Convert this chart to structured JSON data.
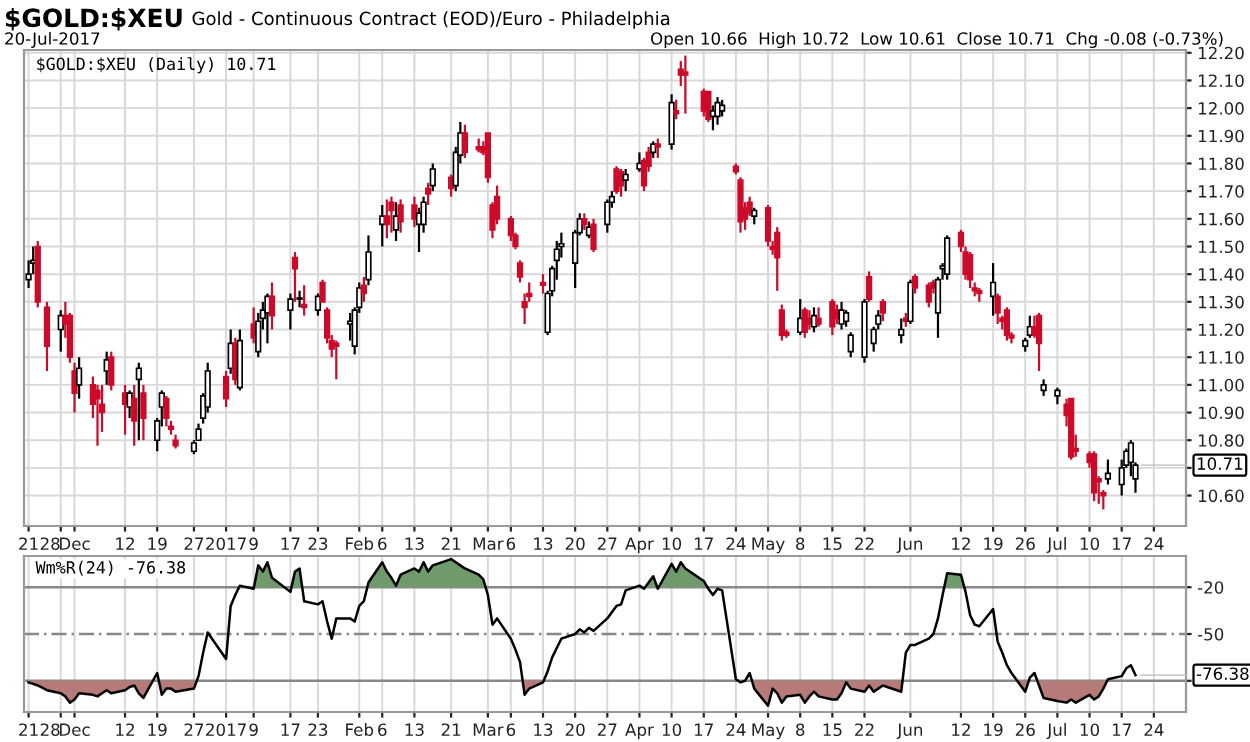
{
  "chart_data": [
    {
      "type": "candlestick",
      "title": "$GOLD:$XEU",
      "subtitle": "Gold - Continuous Contract (EOD)/Euro - Philadelphia",
      "annotations": [
        "20-Jul-2017",
        "Open 10.66  High 10.72  Low 10.61  Close 10.71  Chg -0.08 (-0.73%)",
        "$GOLD:$XEU (Daily) 10.71",
        {
          "text": "10.71",
          "x": "2017-07-20",
          "y": 10.71
        }
      ],
      "x": [
        "2016-11-21",
        "2016-11-22",
        "2016-11-23",
        "2016-11-25",
        "2016-11-28",
        "2016-11-29",
        "2016-11-30",
        "2016-12-01",
        "2016-12-02",
        "2016-12-05",
        "2016-12-06",
        "2016-12-07",
        "2016-12-08",
        "2016-12-09",
        "2016-12-12",
        "2016-12-13",
        "2016-12-14",
        "2016-12-15",
        "2016-12-16",
        "2016-12-19",
        "2016-12-20",
        "2016-12-21",
        "2016-12-22",
        "2016-12-23",
        "2016-12-27",
        "2016-12-28",
        "2016-12-29",
        "2016-12-30",
        "2017-01-03",
        "2017-01-04",
        "2017-01-05",
        "2017-01-06",
        "2017-01-09",
        "2017-01-10",
        "2017-01-11",
        "2017-01-12",
        "2017-01-13",
        "2017-01-17",
        "2017-01-18",
        "2017-01-19",
        "2017-01-20",
        "2017-01-23",
        "2017-01-24",
        "2017-01-25",
        "2017-01-26",
        "2017-01-27",
        "2017-01-30",
        "2017-01-31",
        "2017-02-01",
        "2017-02-02",
        "2017-02-03",
        "2017-02-06",
        "2017-02-07",
        "2017-02-08",
        "2017-02-09",
        "2017-02-10",
        "2017-02-13",
        "2017-02-14",
        "2017-02-15",
        "2017-02-16",
        "2017-02-17",
        "2017-02-21",
        "2017-02-22",
        "2017-02-23",
        "2017-02-24",
        "2017-02-27",
        "2017-02-28",
        "2017-03-01",
        "2017-03-02",
        "2017-03-03",
        "2017-03-06",
        "2017-03-07",
        "2017-03-08",
        "2017-03-09",
        "2017-03-10",
        "2017-03-13",
        "2017-03-14",
        "2017-03-15",
        "2017-03-16",
        "2017-03-17",
        "2017-03-20",
        "2017-03-21",
        "2017-03-22",
        "2017-03-23",
        "2017-03-24",
        "2017-03-27",
        "2017-03-28",
        "2017-03-29",
        "2017-03-30",
        "2017-03-31",
        "2017-04-03",
        "2017-04-04",
        "2017-04-05",
        "2017-04-06",
        "2017-04-07",
        "2017-04-10",
        "2017-04-11",
        "2017-04-12",
        "2017-04-13",
        "2017-04-17",
        "2017-04-18",
        "2017-04-19",
        "2017-04-20",
        "2017-04-21",
        "2017-04-24",
        "2017-04-25",
        "2017-04-26",
        "2017-04-27",
        "2017-04-28",
        "2017-05-01",
        "2017-05-02",
        "2017-05-03",
        "2017-05-04",
        "2017-05-05",
        "2017-05-08",
        "2017-05-09",
        "2017-05-10",
        "2017-05-11",
        "2017-05-12",
        "2017-05-15",
        "2017-05-16",
        "2017-05-17",
        "2017-05-18",
        "2017-05-19",
        "2017-05-22",
        "2017-05-23",
        "2017-05-24",
        "2017-05-25",
        "2017-05-26",
        "2017-05-30",
        "2017-05-31",
        "2017-06-01",
        "2017-06-02",
        "2017-06-05",
        "2017-06-06",
        "2017-06-07",
        "2017-06-08",
        "2017-06-09",
        "2017-06-12",
        "2017-06-13",
        "2017-06-14",
        "2017-06-15",
        "2017-06-16",
        "2017-06-19",
        "2017-06-20",
        "2017-06-21",
        "2017-06-22",
        "2017-06-23",
        "2017-06-26",
        "2017-06-27",
        "2017-06-28",
        "2017-06-29",
        "2017-06-30",
        "2017-07-03",
        "2017-07-05",
        "2017-07-06",
        "2017-07-07",
        "2017-07-10",
        "2017-07-11",
        "2017-07-12",
        "2017-07-13",
        "2017-07-14",
        "2017-07-17",
        "2017-07-18",
        "2017-07-19",
        "2017-07-20"
      ],
      "ohlc": [
        [
          11.38,
          11.45,
          11.35,
          11.4
        ],
        [
          11.44,
          11.5,
          11.4,
          11.45
        ],
        [
          11.5,
          11.52,
          11.28,
          11.3
        ],
        [
          11.28,
          11.3,
          11.05,
          11.14
        ],
        [
          11.2,
          11.27,
          11.12,
          11.25
        ],
        [
          11.25,
          11.3,
          11.17,
          11.22
        ],
        [
          11.25,
          11.26,
          11.08,
          11.1
        ],
        [
          11.05,
          11.08,
          10.9,
          10.97
        ],
        [
          11.0,
          11.1,
          10.95,
          11.06
        ],
        [
          11.0,
          11.03,
          10.88,
          10.93
        ],
        [
          10.98,
          11.0,
          10.78,
          10.95
        ],
        [
          10.93,
          11.0,
          10.83,
          10.9
        ],
        [
          11.05,
          11.12,
          11.0,
          11.09
        ],
        [
          11.1,
          11.12,
          10.98,
          11.0
        ],
        [
          10.97,
          11.0,
          10.82,
          10.93
        ],
        [
          10.92,
          10.98,
          10.88,
          10.97
        ],
        [
          10.95,
          11.0,
          10.78,
          10.87
        ],
        [
          11.02,
          11.08,
          10.8,
          11.06
        ],
        [
          10.97,
          11.0,
          10.8,
          10.88
        ],
        [
          10.8,
          10.88,
          10.76,
          10.87
        ],
        [
          10.92,
          10.98,
          10.85,
          10.97
        ],
        [
          10.95,
          10.96,
          10.85,
          10.88
        ],
        [
          10.85,
          10.87,
          10.82,
          10.84
        ],
        [
          10.8,
          10.82,
          10.77,
          10.78
        ],
        [
          10.76,
          10.8,
          10.75,
          10.79
        ],
        [
          10.8,
          10.86,
          10.8,
          10.84
        ],
        [
          10.88,
          10.97,
          10.86,
          10.96
        ],
        [
          10.92,
          11.08,
          10.9,
          11.05
        ],
        [
          11.03,
          11.05,
          10.92,
          10.95
        ],
        [
          11.06,
          11.2,
          11.04,
          11.15
        ],
        [
          11.15,
          11.17,
          11.0,
          11.02
        ],
        [
          10.99,
          11.2,
          10.98,
          11.16
        ],
        [
          11.22,
          11.28,
          11.15,
          11.17
        ],
        [
          11.12,
          11.26,
          11.1,
          11.23
        ],
        [
          11.24,
          11.3,
          11.2,
          11.27
        ],
        [
          11.26,
          11.33,
          11.15,
          11.32
        ],
        [
          11.32,
          11.37,
          11.2,
          11.25
        ],
        [
          11.27,
          11.33,
          11.2,
          11.31
        ],
        [
          11.46,
          11.48,
          11.3,
          11.42
        ],
        [
          11.31,
          11.34,
          11.28,
          11.31
        ],
        [
          11.29,
          11.36,
          11.25,
          11.28
        ],
        [
          11.27,
          11.33,
          11.25,
          11.32
        ],
        [
          11.37,
          11.38,
          11.3,
          11.3
        ],
        [
          11.27,
          11.28,
          11.15,
          11.17
        ],
        [
          11.16,
          11.18,
          11.1,
          11.13
        ],
        [
          11.15,
          11.16,
          11.02,
          11.14
        ],
        [
          11.22,
          11.26,
          11.16,
          11.23
        ],
        [
          11.14,
          11.28,
          11.11,
          11.27
        ],
        [
          11.28,
          11.37,
          11.26,
          11.35
        ],
        [
          11.36,
          11.39,
          11.3,
          11.33
        ],
        [
          11.38,
          11.54,
          11.36,
          11.48
        ],
        [
          11.58,
          11.65,
          11.5,
          11.61
        ],
        [
          11.61,
          11.67,
          11.53,
          11.58
        ],
        [
          11.66,
          11.68,
          11.55,
          11.63
        ],
        [
          11.56,
          11.66,
          11.52,
          11.61
        ],
        [
          11.65,
          11.67,
          11.55,
          11.59
        ],
        [
          11.65,
          11.68,
          11.57,
          11.6
        ],
        [
          11.58,
          11.64,
          11.48,
          11.62
        ],
        [
          11.58,
          11.68,
          11.55,
          11.66
        ],
        [
          11.71,
          11.73,
          11.65,
          11.69
        ],
        [
          11.72,
          11.8,
          11.7,
          11.78
        ],
        [
          11.75,
          11.76,
          11.68,
          11.71
        ],
        [
          11.72,
          11.86,
          11.7,
          11.84
        ],
        [
          11.83,
          11.95,
          11.8,
          11.91
        ],
        [
          11.91,
          11.94,
          11.82,
          11.84
        ],
        [
          11.86,
          11.89,
          11.84,
          11.85
        ],
        [
          11.86,
          11.88,
          11.83,
          11.84
        ],
        [
          11.91,
          11.91,
          11.73,
          11.75
        ],
        [
          11.65,
          11.66,
          11.53,
          11.56
        ],
        [
          11.68,
          11.72,
          11.58,
          11.6
        ],
        [
          11.6,
          11.61,
          11.52,
          11.54
        ],
        [
          11.54,
          11.55,
          11.49,
          11.5
        ],
        [
          11.44,
          11.45,
          11.37,
          11.39
        ],
        [
          11.3,
          11.33,
          11.22,
          11.28
        ],
        [
          11.33,
          11.37,
          11.3,
          11.32
        ],
        [
          11.37,
          11.4,
          11.33,
          11.36
        ],
        [
          11.19,
          11.34,
          11.18,
          11.33
        ],
        [
          11.34,
          11.43,
          11.32,
          11.42
        ],
        [
          11.45,
          11.52,
          11.38,
          11.49
        ],
        [
          11.5,
          11.55,
          11.46,
          11.51
        ],
        [
          11.44,
          11.56,
          11.35,
          11.55
        ],
        [
          11.55,
          11.62,
          11.54,
          11.6
        ],
        [
          11.6,
          11.62,
          11.56,
          11.58
        ],
        [
          11.54,
          11.59,
          11.53,
          11.57
        ],
        [
          11.58,
          11.6,
          11.48,
          11.49
        ],
        [
          11.58,
          11.67,
          11.55,
          11.66
        ],
        [
          11.66,
          11.7,
          11.64,
          11.68
        ],
        [
          11.78,
          11.79,
          11.69,
          11.7
        ],
        [
          11.77,
          11.78,
          11.68,
          11.72
        ],
        [
          11.74,
          11.78,
          11.7,
          11.76
        ],
        [
          11.78,
          11.84,
          11.77,
          11.8
        ],
        [
          11.81,
          11.82,
          11.7,
          11.72
        ],
        [
          11.84,
          11.86,
          11.77,
          11.79
        ],
        [
          11.84,
          11.88,
          11.82,
          11.87
        ],
        [
          11.87,
          11.89,
          11.82,
          11.86
        ],
        [
          11.87,
          12.05,
          11.85,
          12.02
        ],
        [
          11.99,
          12.03,
          11.96,
          11.98
        ],
        [
          12.14,
          12.17,
          12.08,
          12.12
        ],
        [
          12.13,
          12.19,
          11.98,
          12.12
        ],
        [
          12.06,
          12.07,
          11.97,
          11.99
        ],
        [
          12.06,
          12.06,
          11.95,
          11.96
        ],
        [
          11.97,
          12.01,
          11.92,
          11.99
        ],
        [
          11.97,
          12.04,
          11.94,
          12.02
        ],
        [
          11.99,
          12.03,
          11.97,
          12.01
        ],
        [
          11.79,
          11.8,
          11.76,
          11.77
        ],
        [
          11.74,
          11.75,
          11.55,
          11.59
        ],
        [
          11.64,
          11.66,
          11.56,
          11.6
        ],
        [
          11.66,
          11.68,
          11.61,
          11.62
        ],
        [
          11.61,
          11.64,
          11.58,
          11.63
        ],
        [
          11.64,
          11.65,
          11.5,
          11.52
        ],
        [
          11.5,
          11.52,
          11.47,
          11.49
        ],
        [
          11.55,
          11.57,
          11.34,
          11.46
        ],
        [
          11.27,
          11.29,
          11.16,
          11.18
        ],
        [
          11.19,
          11.2,
          11.17,
          11.18
        ],
        [
          11.19,
          11.31,
          11.18,
          11.24
        ],
        [
          11.27,
          11.28,
          11.17,
          11.19
        ],
        [
          11.24,
          11.27,
          11.2,
          11.22
        ],
        [
          11.21,
          11.28,
          11.19,
          11.25
        ],
        [
          11.24,
          11.28,
          11.21,
          11.22
        ],
        [
          11.3,
          11.31,
          11.18,
          11.21
        ],
        [
          11.27,
          11.29,
          11.22,
          11.24
        ],
        [
          11.22,
          11.3,
          11.2,
          11.27
        ],
        [
          11.23,
          11.27,
          11.21,
          11.26
        ],
        [
          11.12,
          11.19,
          11.1,
          11.18
        ],
        [
          11.1,
          11.31,
          11.08,
          11.3
        ],
        [
          11.39,
          11.41,
          11.3,
          11.31
        ],
        [
          11.15,
          11.21,
          11.12,
          11.2
        ],
        [
          11.22,
          11.27,
          11.2,
          11.25
        ],
        [
          11.3,
          11.31,
          11.23,
          11.26
        ],
        [
          11.18,
          11.24,
          11.15,
          11.2
        ],
        [
          11.24,
          11.26,
          11.21,
          11.23
        ],
        [
          11.23,
          11.38,
          11.22,
          11.37
        ],
        [
          11.39,
          11.4,
          11.33,
          11.35
        ],
        [
          11.36,
          11.37,
          11.28,
          11.3
        ],
        [
          11.37,
          11.38,
          11.33,
          11.35
        ],
        [
          11.26,
          11.39,
          11.17,
          11.38
        ],
        [
          11.42,
          11.44,
          11.38,
          11.43
        ],
        [
          11.4,
          11.54,
          11.38,
          11.53
        ],
        [
          11.55,
          11.56,
          11.48,
          11.5
        ],
        [
          11.48,
          11.5,
          11.38,
          11.4
        ],
        [
          11.47,
          11.48,
          11.35,
          11.38
        ],
        [
          11.35,
          11.37,
          11.32,
          11.34
        ],
        [
          11.34,
          11.35,
          11.3,
          11.33
        ],
        [
          11.32,
          11.44,
          11.25,
          11.37
        ],
        [
          11.32,
          11.33,
          11.22,
          11.26
        ],
        [
          11.24,
          11.25,
          11.2,
          11.23
        ],
        [
          11.27,
          11.28,
          11.16,
          11.18
        ],
        [
          11.18,
          11.19,
          11.15,
          11.17
        ],
        [
          11.14,
          11.17,
          11.12,
          11.16
        ],
        [
          11.18,
          11.25,
          11.17,
          11.21
        ],
        [
          11.21,
          11.25,
          11.17,
          11.18
        ],
        [
          11.25,
          11.26,
          11.05,
          11.15
        ],
        [
          10.98,
          11.02,
          10.96,
          11.0
        ],
        [
          10.96,
          10.99,
          10.93,
          10.98
        ],
        [
          10.93,
          10.95,
          10.85,
          10.89
        ],
        [
          10.95,
          10.95,
          10.73,
          10.74
        ],
        [
          10.77,
          10.82,
          10.74,
          10.76
        ],
        [
          10.75,
          10.76,
          10.7,
          10.72
        ],
        [
          10.75,
          10.76,
          10.58,
          10.61
        ],
        [
          10.66,
          10.67,
          10.57,
          10.65
        ],
        [
          10.61,
          10.62,
          10.55,
          10.6
        ],
        [
          10.66,
          10.73,
          10.64,
          10.68
        ],
        [
          10.64,
          10.73,
          10.6,
          10.7
        ],
        [
          10.71,
          10.77,
          10.7,
          10.76
        ],
        [
          10.72,
          10.8,
          10.67,
          10.79
        ],
        [
          10.66,
          10.72,
          10.61,
          10.71
        ]
      ],
      "xlim": [
        "2016-11-20",
        "2017-07-31"
      ],
      "xticks": [
        {
          "value": "2016-11-21",
          "label": "21"
        },
        {
          "value": "2016-11-28",
          "label": "28"
        },
        {
          "value": "2016-12-01",
          "label": "Dec"
        },
        {
          "value": "2016-12-12",
          "label": "12"
        },
        {
          "value": "2016-12-19",
          "label": "19"
        },
        {
          "value": "2016-12-27",
          "label": "27"
        },
        {
          "value": "2017-01-03",
          "label": "2017"
        },
        {
          "value": "2017-01-09",
          "label": "9"
        },
        {
          "value": "2017-01-17",
          "label": "17"
        },
        {
          "value": "2017-01-23",
          "label": "23"
        },
        {
          "value": "2017-02-01",
          "label": "Feb"
        },
        {
          "value": "2017-02-06",
          "label": "6"
        },
        {
          "value": "2017-02-13",
          "label": "13"
        },
        {
          "value": "2017-02-21",
          "label": "21"
        },
        {
          "value": "2017-03-01",
          "label": "Mar"
        },
        {
          "value": "2017-03-06",
          "label": "6"
        },
        {
          "value": "2017-03-13",
          "label": "13"
        },
        {
          "value": "2017-03-20",
          "label": "20"
        },
        {
          "value": "2017-03-27",
          "label": "27"
        },
        {
          "value": "2017-04-03",
          "label": "Apr"
        },
        {
          "value": "2017-04-10",
          "label": "10"
        },
        {
          "value": "2017-04-17",
          "label": "17"
        },
        {
          "value": "2017-04-24",
          "label": "24"
        },
        {
          "value": "2017-05-01",
          "label": "May"
        },
        {
          "value": "2017-05-08",
          "label": "8"
        },
        {
          "value": "2017-05-15",
          "label": "15"
        },
        {
          "value": "2017-05-22",
          "label": "22"
        },
        {
          "value": "2017-06-01",
          "label": "Jun"
        },
        {
          "value": "2017-06-12",
          "label": "12"
        },
        {
          "value": "2017-06-19",
          "label": "19"
        },
        {
          "value": "2017-06-26",
          "label": "26"
        },
        {
          "value": "2017-07-03",
          "label": "Jul"
        },
        {
          "value": "2017-07-10",
          "label": "10"
        },
        {
          "value": "2017-07-17",
          "label": "17"
        },
        {
          "value": "2017-07-24",
          "label": "24"
        }
      ],
      "ylim": [
        10.49,
        12.21
      ],
      "yticks": [
        {
          "value": 10.6,
          "label": "10.60"
        },
        {
          "value": 10.7,
          "label": null
        },
        {
          "value": 10.8,
          "label": "10.80"
        },
        {
          "value": 10.9,
          "label": "10.90"
        },
        {
          "value": 11.0,
          "label": "11.00"
        },
        {
          "value": 11.1,
          "label": "11.10"
        },
        {
          "value": 11.2,
          "label": "11.20"
        },
        {
          "value": 11.3,
          "label": "11.30"
        },
        {
          "value": 11.4,
          "label": "11.40"
        },
        {
          "value": 11.5,
          "label": "11.50"
        },
        {
          "value": 11.6,
          "label": "11.60"
        },
        {
          "value": 11.7,
          "label": "11.70"
        },
        {
          "value": 11.8,
          "label": "11.80"
        },
        {
          "value": 11.9,
          "label": "11.90"
        },
        {
          "value": 12.0,
          "label": "12.00"
        },
        {
          "value": 12.1,
          "label": "12.10"
        },
        {
          "value": 12.2,
          "label": "12.20"
        }
      ],
      "grid": true
    },
    {
      "type": "line",
      "annotations": [
        "Wm%R(24) -76.38",
        {
          "text": "-76.38",
          "x": "2017-07-20",
          "y": -76.38
        }
      ],
      "x": [
        "2016-11-21",
        "2016-11-22",
        "2016-11-23",
        "2016-11-25",
        "2016-11-28",
        "2016-11-29",
        "2016-11-30",
        "2016-12-01",
        "2016-12-02",
        "2016-12-05",
        "2016-12-06",
        "2016-12-07",
        "2016-12-08",
        "2016-12-09",
        "2016-12-12",
        "2016-12-13",
        "2016-12-14",
        "2016-12-15",
        "2016-12-16",
        "2016-12-19",
        "2016-12-20",
        "2016-12-21",
        "2016-12-22",
        "2016-12-23",
        "2016-12-27",
        "2016-12-28",
        "2016-12-29",
        "2016-12-30",
        "2017-01-03",
        "2017-01-04",
        "2017-01-05",
        "2017-01-06",
        "2017-01-09",
        "2017-01-10",
        "2017-01-11",
        "2017-01-12",
        "2017-01-13",
        "2017-01-17",
        "2017-01-18",
        "2017-01-19",
        "2017-01-20",
        "2017-01-23",
        "2017-01-24",
        "2017-01-25",
        "2017-01-26",
        "2017-01-27",
        "2017-01-30",
        "2017-01-31",
        "2017-02-01",
        "2017-02-02",
        "2017-02-03",
        "2017-02-06",
        "2017-02-07",
        "2017-02-08",
        "2017-02-09",
        "2017-02-10",
        "2017-02-13",
        "2017-02-14",
        "2017-02-15",
        "2017-02-16",
        "2017-02-17",
        "2017-02-21",
        "2017-02-22",
        "2017-02-23",
        "2017-02-24",
        "2017-02-27",
        "2017-02-28",
        "2017-03-01",
        "2017-03-02",
        "2017-03-03",
        "2017-03-06",
        "2017-03-07",
        "2017-03-08",
        "2017-03-09",
        "2017-03-10",
        "2017-03-13",
        "2017-03-14",
        "2017-03-15",
        "2017-03-16",
        "2017-03-17",
        "2017-03-20",
        "2017-03-21",
        "2017-03-22",
        "2017-03-23",
        "2017-03-24",
        "2017-03-27",
        "2017-03-28",
        "2017-03-29",
        "2017-03-30",
        "2017-03-31",
        "2017-04-03",
        "2017-04-04",
        "2017-04-05",
        "2017-04-06",
        "2017-04-07",
        "2017-04-10",
        "2017-04-11",
        "2017-04-12",
        "2017-04-13",
        "2017-04-17",
        "2017-04-18",
        "2017-04-19",
        "2017-04-20",
        "2017-04-21",
        "2017-04-24",
        "2017-04-25",
        "2017-04-26",
        "2017-04-27",
        "2017-04-28",
        "2017-05-01",
        "2017-05-02",
        "2017-05-03",
        "2017-05-04",
        "2017-05-05",
        "2017-05-08",
        "2017-05-09",
        "2017-05-10",
        "2017-05-11",
        "2017-05-12",
        "2017-05-15",
        "2017-05-16",
        "2017-05-17",
        "2017-05-18",
        "2017-05-19",
        "2017-05-22",
        "2017-05-23",
        "2017-05-24",
        "2017-05-25",
        "2017-05-26",
        "2017-05-30",
        "2017-05-31",
        "2017-06-01",
        "2017-06-02",
        "2017-06-05",
        "2017-06-06",
        "2017-06-07",
        "2017-06-08",
        "2017-06-09",
        "2017-06-12",
        "2017-06-13",
        "2017-06-14",
        "2017-06-15",
        "2017-06-16",
        "2017-06-19",
        "2017-06-20",
        "2017-06-21",
        "2017-06-22",
        "2017-06-23",
        "2017-06-26",
        "2017-06-27",
        "2017-06-28",
        "2017-06-29",
        "2017-06-30",
        "2017-07-03",
        "2017-07-05",
        "2017-07-06",
        "2017-07-07",
        "2017-07-10",
        "2017-07-11",
        "2017-07-12",
        "2017-07-13",
        "2017-07-14",
        "2017-07-17",
        "2017-07-18",
        "2017-07-19",
        "2017-07-20"
      ],
      "xlim": [
        "2016-11-20",
        "2017-07-31"
      ],
      "xticks": [
        {
          "value": "2016-11-21",
          "label": "21"
        },
        {
          "value": "2016-11-28",
          "label": "28"
        },
        {
          "value": "2016-12-01",
          "label": "Dec"
        },
        {
          "value": "2016-12-12",
          "label": "12"
        },
        {
          "value": "2016-12-19",
          "label": "19"
        },
        {
          "value": "2016-12-27",
          "label": "27"
        },
        {
          "value": "2017-01-03",
          "label": "2017"
        },
        {
          "value": "2017-01-09",
          "label": "9"
        },
        {
          "value": "2017-01-17",
          "label": "17"
        },
        {
          "value": "2017-01-23",
          "label": "23"
        },
        {
          "value": "2017-02-01",
          "label": "Feb"
        },
        {
          "value": "2017-02-06",
          "label": "6"
        },
        {
          "value": "2017-02-13",
          "label": "13"
        },
        {
          "value": "2017-02-21",
          "label": "21"
        },
        {
          "value": "2017-03-01",
          "label": "Mar"
        },
        {
          "value": "2017-03-06",
          "label": "6"
        },
        {
          "value": "2017-03-13",
          "label": "13"
        },
        {
          "value": "2017-03-20",
          "label": "20"
        },
        {
          "value": "2017-03-27",
          "label": "27"
        },
        {
          "value": "2017-04-03",
          "label": "Apr"
        },
        {
          "value": "2017-04-10",
          "label": "10"
        },
        {
          "value": "2017-04-17",
          "label": "17"
        },
        {
          "value": "2017-04-24",
          "label": "24"
        },
        {
          "value": "2017-05-01",
          "label": "May"
        },
        {
          "value": "2017-05-08",
          "label": "8"
        },
        {
          "value": "2017-05-15",
          "label": "15"
        },
        {
          "value": "2017-05-22",
          "label": "22"
        },
        {
          "value": "2017-06-01",
          "label": "Jun"
        },
        {
          "value": "2017-06-12",
          "label": "12"
        },
        {
          "value": "2017-06-19",
          "label": "19"
        },
        {
          "value": "2017-06-26",
          "label": "26"
        },
        {
          "value": "2017-07-03",
          "label": "Jul"
        },
        {
          "value": "2017-07-10",
          "label": "10"
        },
        {
          "value": "2017-07-17",
          "label": "17"
        },
        {
          "value": "2017-07-24",
          "label": "24"
        }
      ],
      "series": [
        {
          "color": "#000000",
          "values": [
            -81,
            -82,
            -83,
            -86,
            -88,
            -90,
            -94,
            -92,
            -88,
            -89,
            -90,
            -88,
            -86,
            -88,
            -86,
            -84,
            -83,
            -88,
            -91,
            -75,
            -89,
            -85,
            -85,
            -87,
            -85,
            -77,
            -62,
            -49,
            -66,
            -32,
            -25,
            -19,
            -21,
            -6,
            -10,
            -4,
            -14,
            -23,
            -10,
            -8,
            -29,
            -31,
            -29,
            -42,
            -53,
            -40,
            -40,
            -42,
            -32,
            -29,
            -17,
            -4,
            -10,
            -14,
            -19,
            -12,
            -8,
            -10,
            -4,
            -10,
            -6,
            -2,
            -4,
            -6,
            -8,
            -12,
            -15,
            -25,
            -44,
            -40,
            -53,
            -60,
            -68,
            -89,
            -85,
            -81,
            -74,
            -65,
            -59,
            -53,
            -50,
            -47,
            -49,
            -46,
            -48,
            -40,
            -36,
            -32,
            -31,
            -22,
            -19,
            -21,
            -17,
            -13,
            -21,
            -5,
            -10,
            -4,
            -8,
            -16,
            -21,
            -25,
            -21,
            -22,
            -79,
            -81,
            -80,
            -75,
            -85,
            -96,
            -85,
            -88,
            -94,
            -90,
            -89,
            -94,
            -90,
            -87,
            -90,
            -92,
            -92,
            -88,
            -81,
            -85,
            -87,
            -83,
            -87,
            -85,
            -83,
            -87,
            -62,
            -57,
            -57,
            -53,
            -50,
            -40,
            -25,
            -11,
            -12,
            -23,
            -38,
            -44,
            -45,
            -34,
            -55,
            -62,
            -70,
            -75,
            -87,
            -78,
            -75,
            -83,
            -91,
            -93,
            -94,
            -92,
            -94,
            -89,
            -92,
            -90,
            -85,
            -79,
            -77,
            -72,
            -70,
            -76.38
          ]
        }
      ],
      "ylim": [
        -100,
        0
      ],
      "yticks": [
        -20,
        -50,
        {
          "value": -80,
          "label": null
        }
      ],
      "ref_lines": [
        {
          "axis": "y",
          "value": -20,
          "color": "#888888",
          "line_style": "solid"
        },
        {
          "axis": "y",
          "value": -50,
          "color": "#888888",
          "line_style": "dashed"
        },
        {
          "axis": "y",
          "value": -80,
          "color": "#888888",
          "line_style": "solid"
        }
      ],
      "grid": "x"
    }
  ]
}
